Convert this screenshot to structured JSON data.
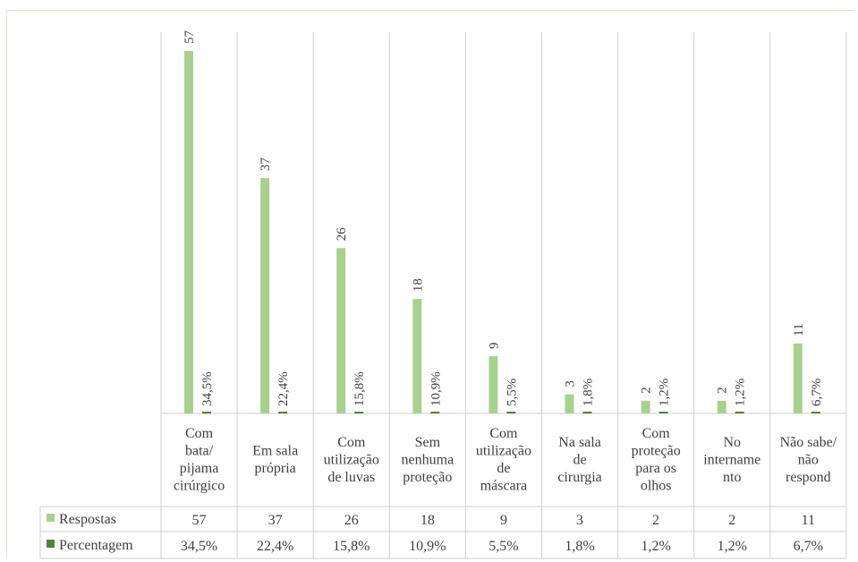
{
  "chart_data": {
    "type": "bar",
    "categories": [
      [
        "Com",
        "bata/",
        "pijama",
        "cirúrgico"
      ],
      [
        "Em sala",
        "própria"
      ],
      [
        "Com",
        "utilização",
        "de luvas"
      ],
      [
        "Sem",
        "nenhuma",
        "proteção"
      ],
      [
        "Com",
        "utilização",
        "de",
        "máscara"
      ],
      [
        "Na sala",
        "de",
        "cirurgia"
      ],
      [
        "Com",
        "proteção",
        "para os",
        "olhos"
      ],
      [
        "No",
        "internamе",
        "nto"
      ],
      [
        "Não sabe/",
        "não",
        "respond"
      ]
    ],
    "series": [
      {
        "name": "Respostas",
        "color": "#a9d18e",
        "values": [
          57,
          37,
          26,
          18,
          9,
          3,
          2,
          2,
          11
        ],
        "labels": [
          "57",
          "37",
          "26",
          "18",
          "9",
          "3",
          "2",
          "2",
          "11"
        ]
      },
      {
        "name": "Percentagem",
        "color": "#548235",
        "values": [
          34.5,
          22.4,
          15.8,
          10.9,
          5.5,
          1.8,
          1.2,
          1.2,
          6.7
        ],
        "labels": [
          "34,5%",
          "22,4%",
          "15,8%",
          "10,9%",
          "5,5%",
          "1,8%",
          "1,2%",
          "1,2%",
          "6,7%"
        ]
      }
    ],
    "ylim": [
      0,
      57
    ],
    "grid": "vertical category separators",
    "legend": "data-table"
  }
}
